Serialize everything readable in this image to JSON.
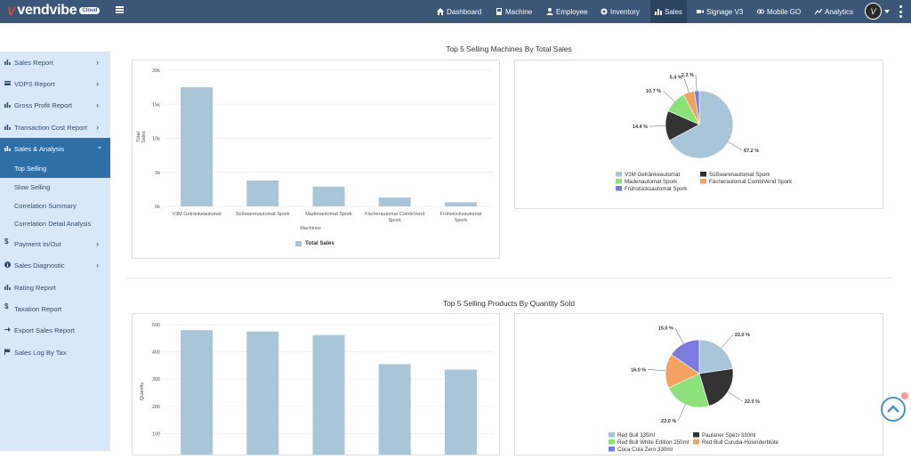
{
  "app": {
    "logo_mark": "V",
    "logo_text": "vendvibe",
    "logo_badge": "Cloud"
  },
  "nav": [
    {
      "label": "Dashboard",
      "icon": "home-icon"
    },
    {
      "label": "Machine",
      "icon": "machine-icon"
    },
    {
      "label": "Employee",
      "icon": "user-icon"
    },
    {
      "label": "Inventory",
      "icon": "inventory-icon"
    },
    {
      "label": "Sales",
      "icon": "chart-icon"
    },
    {
      "label": "Signage V3",
      "icon": "video-icon"
    },
    {
      "label": "Mobile GO",
      "icon": "mobile-icon"
    },
    {
      "label": "Analytics",
      "icon": "analytics-icon"
    }
  ],
  "user": {
    "avatar_letter": "V"
  },
  "sidebar": {
    "items": [
      {
        "label": "Sales Report",
        "icon": "bar-chart-icon",
        "chevron": "›"
      },
      {
        "label": "VDPS Report",
        "icon": "card-icon",
        "chevron": "›"
      },
      {
        "label": "Gross Profit Report",
        "icon": "bar-chart-icon",
        "chevron": "›"
      },
      {
        "label": "Transaction Cost Report",
        "icon": "bar-chart-icon",
        "chevron": "›"
      },
      {
        "label": "Sales & Analysis",
        "icon": "bar-chart-icon",
        "chevron": "⌄"
      },
      {
        "label": "Payment In/Out",
        "icon": "dollar-icon",
        "chevron": "›"
      },
      {
        "label": "Sales Diagnostic",
        "icon": "info-icon",
        "chevron": "›"
      },
      {
        "label": "Rating Report",
        "icon": "bar-chart-icon",
        "chevron": ""
      },
      {
        "label": "Taxation Report",
        "icon": "dollar-icon",
        "chevron": ""
      },
      {
        "label": "Export Sales Report",
        "icon": "export-icon",
        "chevron": ""
      },
      {
        "label": "Sales Log By Tax",
        "icon": "flag-icon",
        "chevron": ""
      }
    ],
    "subitems": [
      "Top Selling",
      "Slow Selling",
      "Correlation Summary",
      "Correlation Detail Analysis"
    ]
  },
  "chart_data": [
    {
      "type": "bar",
      "title": "Top 5 Selling Machines By Total Sales",
      "xlabel": "Machines",
      "ylabel": "Total Sales",
      "yticks": [
        "0k",
        "5k",
        "10k",
        "15k",
        "20k"
      ],
      "ylim": [
        0,
        20000
      ],
      "categories": [
        "V3M Getränkeautomat",
        "Süßwarenautomat Spork",
        "Madenautomat Spork",
        "Fächerautomat CombiVend Spork",
        "Frühstücksautomat Spork"
      ],
      "series": [
        {
          "name": "Total Sales",
          "values": [
            17500,
            3800,
            2900,
            1300,
            600
          ],
          "color": "#a9c6d8"
        }
      ],
      "legend": "bottom"
    },
    {
      "type": "pie",
      "slices": [
        {
          "label": "V3M Getränkeautomat",
          "value": 67.2,
          "display": "67.2 %",
          "color": "#a9c6d8"
        },
        {
          "label": "Süßwarenautomat Spork",
          "value": 14.4,
          "display": "14.4 %",
          "color": "#333333"
        },
        {
          "label": "Madenautomat Spork",
          "value": 10.7,
          "display": "10.7 %",
          "color": "#8de17a"
        },
        {
          "label": "Fächerautomat CombiVend Spork",
          "value": 5.4,
          "display": "5.4 %",
          "color": "#f4a261"
        },
        {
          "label": "Frühstücksautomat Spork",
          "value": 2.3,
          "display": "2.3 %",
          "color": "#7b7be0"
        }
      ],
      "legend": "bottom"
    },
    {
      "type": "bar",
      "title": "Top 5 Selling Products By Quantity Sold",
      "ylabel": "Quantity",
      "yticks": [
        "100",
        "200",
        "300",
        "400",
        "500"
      ],
      "ylim": [
        0,
        500
      ],
      "series": [
        {
          "name": "Quantity",
          "values": [
            480,
            475,
            462,
            355,
            335
          ],
          "color": "#a9c6d8"
        }
      ]
    },
    {
      "type": "pie",
      "slices": [
        {
          "label": "Red Bull 335ml",
          "value": 22.0,
          "display": "22.0 %",
          "color": "#a9c6d8"
        },
        {
          "label": "Paulaner Spezi 330ml",
          "value": 22.0,
          "display": "22.0 %",
          "color": "#333333"
        },
        {
          "label": "Red Bull White Edition 250ml",
          "value": 22.0,
          "display": "22.0 %",
          "color": "#8de17a"
        },
        {
          "label": "Red Bull Curuba-Holunderblüte",
          "value": 16.0,
          "display": "16.0 %",
          "color": "#f4a261"
        },
        {
          "label": "Coca Cola Zero 330ml",
          "value": 15.0,
          "display": "15.0 %",
          "color": "#7b7be0"
        }
      ],
      "legend": "bottom"
    }
  ]
}
